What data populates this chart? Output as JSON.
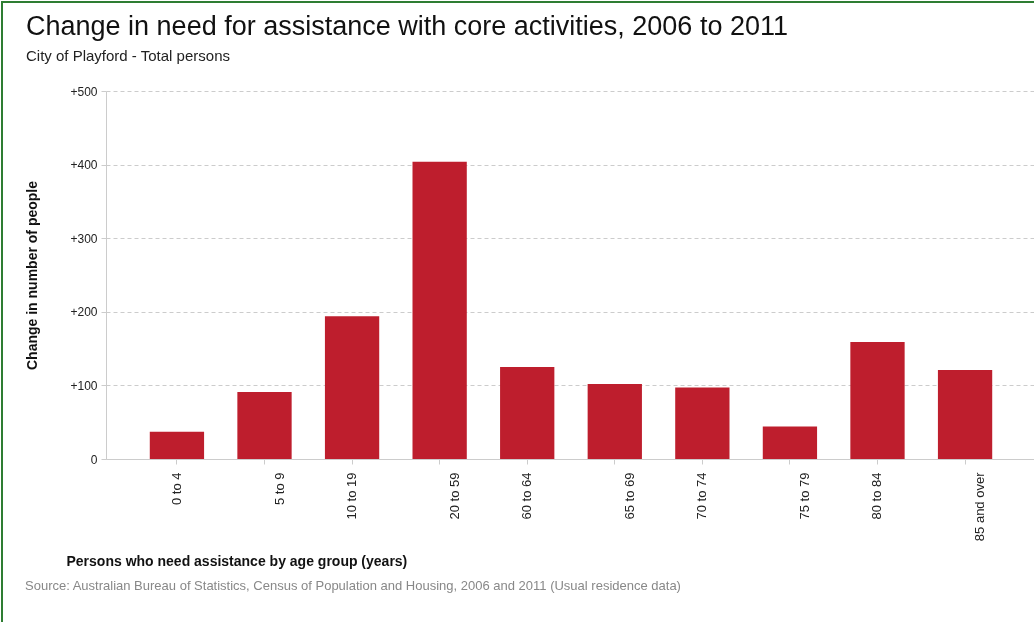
{
  "chart_data": {
    "type": "bar",
    "title": "Change in need for assistance with core activities, 2006 to 2011",
    "subtitle": "City of Playford - Total persons",
    "xlabel": "Persons who need assistance by age group (years)",
    "ylabel": "Change in number of people",
    "categories": [
      "0 to 4",
      "5 to 9",
      "10 to 19",
      "20 to 59",
      "60 to 64",
      "65 to 69",
      "70 to 74",
      "75 to 79",
      "80 to 84",
      "85 and over"
    ],
    "values": [
      37,
      91,
      194,
      404,
      125,
      102,
      97,
      44,
      159,
      121
    ],
    "color": "#be1e2d",
    "ylim": [
      0,
      500
    ],
    "yticks": [
      0,
      {
        "value": 100,
        "label": "+100"
      },
      {
        "value": 200,
        "label": "+200"
      },
      {
        "value": 300,
        "label": "+300"
      },
      {
        "value": 400,
        "label": "+400"
      },
      {
        "value": 500,
        "label": "+500"
      }
    ],
    "grid": "y",
    "annotations": [
      "Source: Australian Bureau of Statistics, Census of Population and Housing, 2006 and 2011 (Usual residence data)"
    ]
  }
}
